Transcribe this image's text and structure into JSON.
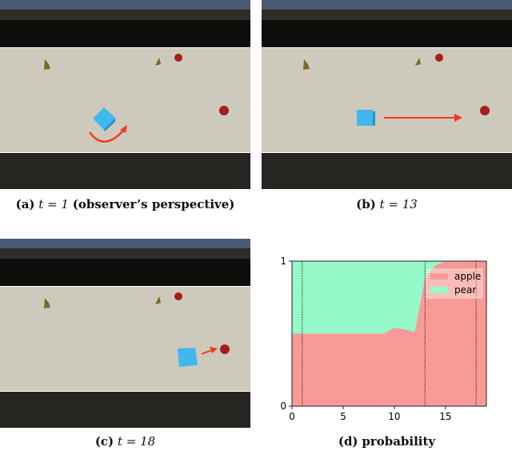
{
  "panels": [
    {
      "label": "(a)",
      "caption": "t = 1",
      "caption_note": "(observer’s perspective)"
    },
    {
      "label": "(b)",
      "caption": "t = 13"
    },
    {
      "label": "(c)",
      "caption": "t = 18"
    },
    {
      "label": "(d)",
      "caption": "probability"
    }
  ],
  "colors": {
    "apple": "#fa9a96",
    "pear": "#95f9c9",
    "agent": "#3fb8ee",
    "arrow": "#f43a1a"
  },
  "chart_data": {
    "type": "area",
    "stacked": true,
    "x": [
      0,
      1,
      2,
      3,
      4,
      5,
      6,
      7,
      8,
      9,
      10,
      11,
      12,
      13,
      14,
      15,
      16,
      17,
      18,
      19
    ],
    "series": [
      {
        "name": "apple",
        "values": [
          0.5,
          0.5,
          0.5,
          0.5,
          0.5,
          0.5,
          0.5,
          0.5,
          0.5,
          0.5,
          0.54,
          0.53,
          0.51,
          0.88,
          0.97,
          1.0,
          1.0,
          1.0,
          1.0,
          1.0
        ]
      },
      {
        "name": "pear",
        "values": [
          0.5,
          0.5,
          0.5,
          0.5,
          0.5,
          0.5,
          0.5,
          0.5,
          0.5,
          0.5,
          0.46,
          0.47,
          0.49,
          0.12,
          0.03,
          0.0,
          0.0,
          0.0,
          0.0,
          0.0
        ]
      }
    ],
    "xlim": [
      0,
      19
    ],
    "ylim": [
      0,
      1
    ],
    "xticks": [
      "0",
      "5",
      "10",
      "15"
    ],
    "yticks": [
      "0",
      "1"
    ],
    "vlines": [
      1,
      13,
      18
    ],
    "legend": "top-right",
    "grid": false
  }
}
